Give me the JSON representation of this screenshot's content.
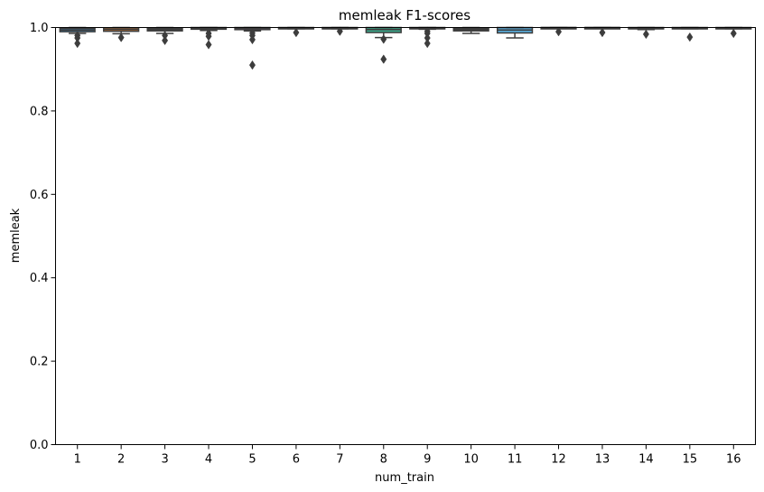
{
  "chart_data": {
    "type": "box",
    "title": "memleak F1-scores",
    "xlabel": "num_train",
    "ylabel": "memleak",
    "ylim": [
      0,
      1.0
    ],
    "yticks": [
      "0.0",
      "0.2",
      "0.4",
      "0.6",
      "0.8",
      "1.0"
    ],
    "categories": [
      "1",
      "2",
      "3",
      "4",
      "5",
      "6",
      "7",
      "8",
      "9",
      "10",
      "11",
      "12",
      "13",
      "14",
      "15",
      "16"
    ],
    "grid": false,
    "legend": "none",
    "boxes": [
      {
        "q1": 0.99,
        "median": 0.994,
        "q3": 0.998,
        "whisker_low": 0.986,
        "whisker_high": 1.0,
        "outliers": [
          0.981,
          0.975,
          0.962
        ],
        "color": "#3274a1"
      },
      {
        "q1": 0.991,
        "median": 0.995,
        "q3": 0.999,
        "whisker_low": 0.985,
        "whisker_high": 1.0,
        "outliers": [
          0.976
        ],
        "color": "#e1812c"
      },
      {
        "q1": 0.992,
        "median": 0.995,
        "q3": 0.998,
        "whisker_low": 0.986,
        "whisker_high": 1.0,
        "outliers": [
          0.981,
          0.969
        ],
        "color": "#3a923a"
      },
      {
        "q1": 0.996,
        "median": 0.998,
        "q3": 1.0,
        "whisker_low": 0.993,
        "whisker_high": 1.0,
        "outliers": [
          0.986,
          0.979,
          0.959
        ],
        "color": "#c03d3e"
      },
      {
        "q1": 0.995,
        "median": 0.998,
        "q3": 1.0,
        "whisker_low": 0.992,
        "whisker_high": 1.0,
        "outliers": [
          0.987,
          0.981,
          0.971,
          0.91
        ],
        "color": "#9372b2"
      },
      {
        "q1": 0.998,
        "median": 0.999,
        "q3": 1.0,
        "whisker_low": 0.997,
        "whisker_high": 1.0,
        "outliers": [
          0.988
        ],
        "color": "#845b53"
      },
      {
        "q1": 0.998,
        "median": 0.999,
        "q3": 1.0,
        "whisker_low": 0.997,
        "whisker_high": 1.0,
        "outliers": [
          0.991
        ],
        "color": "#d684bd"
      },
      {
        "q1": 0.988,
        "median": 0.995,
        "q3": 1.0,
        "whisker_low": 0.976,
        "whisker_high": 1.0,
        "outliers": [
          0.972,
          0.924
        ],
        "color": "#3ba88a"
      },
      {
        "q1": 0.998,
        "median": 0.999,
        "q3": 1.0,
        "whisker_low": 0.996,
        "whisker_high": 1.0,
        "outliers": [
          0.991,
          0.986,
          0.975,
          0.962
        ],
        "color": "#a9aa35"
      },
      {
        "q1": 0.992,
        "median": 0.995,
        "q3": 0.998,
        "whisker_low": 0.986,
        "whisker_high": 1.0,
        "outliers": [],
        "color": "#3274a1"
      },
      {
        "q1": 0.987,
        "median": 0.994,
        "q3": 1.0,
        "whisker_low": 0.975,
        "whisker_high": 1.0,
        "outliers": [],
        "color": "#58a8d6"
      },
      {
        "q1": 0.999,
        "median": 1.0,
        "q3": 1.0,
        "whisker_low": 0.998,
        "whisker_high": 1.0,
        "outliers": [
          0.99
        ],
        "color": "#3274a1"
      },
      {
        "q1": 0.999,
        "median": 1.0,
        "q3": 1.0,
        "whisker_low": 0.998,
        "whisker_high": 1.0,
        "outliers": [
          0.988
        ],
        "color": "#e1812c"
      },
      {
        "q1": 0.997,
        "median": 0.999,
        "q3": 1.0,
        "whisker_low": 0.995,
        "whisker_high": 1.0,
        "outliers": [
          0.984
        ],
        "color": "#3a923a"
      },
      {
        "q1": 0.998,
        "median": 0.999,
        "q3": 1.0,
        "whisker_low": 0.997,
        "whisker_high": 1.0,
        "outliers": [
          0.977
        ],
        "color": "#c03d3e"
      },
      {
        "q1": 0.998,
        "median": 0.999,
        "q3": 1.0,
        "whisker_low": 0.997,
        "whisker_high": 1.0,
        "outliers": [
          0.986
        ],
        "color": "#9372b2"
      }
    ],
    "line_color": "#3d3d3d"
  }
}
